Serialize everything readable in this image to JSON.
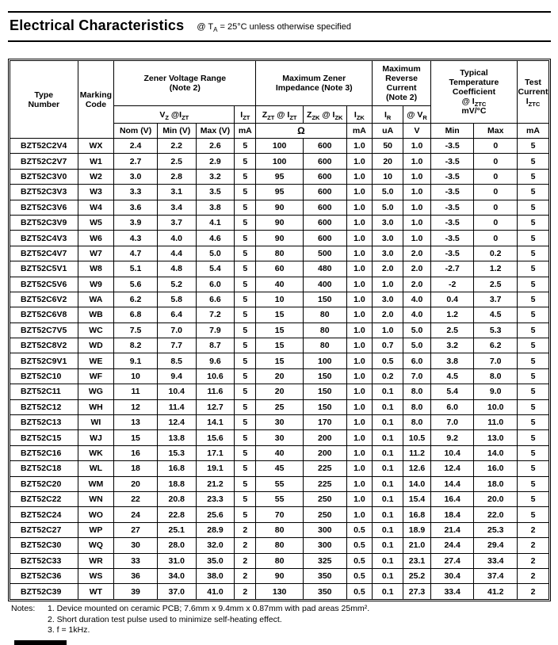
{
  "header": {
    "title": "Electrical Characteristics",
    "conditions": {
      "pre": "@ T",
      "sub": "A",
      "post": " = 25°C unless otherwise specified"
    }
  },
  "table": {
    "group_headers": {
      "type_number": "Type\nNumber",
      "marking_code": "Marking\nCode",
      "zener_voltage_range": "Zener Voltage Range\n(Note 2)",
      "max_zener_impedance": "Maximum Zener\nImpedance (Note 3)",
      "max_reverse_current": "Maximum\nReverse\nCurrent\n(Note 2)",
      "typ_temp_coeff": {
        "title": "Typical\nTemperature\nCoefficient",
        "at_pre": "@ I",
        "at_sub": "ZTC",
        "unit": "mV/°C"
      },
      "test_current": {
        "title": "Test\nCurrent",
        "i_pre": "I",
        "i_sub": "ZTC"
      }
    },
    "symbol_headers": {
      "vz": {
        "p1": "V",
        "s1": "Z",
        "p2": " @I",
        "s2": "ZT"
      },
      "izt": {
        "p1": "I",
        "s1": "ZT"
      },
      "zzt": {
        "p1": "Z",
        "s1": "ZT",
        "p2": " @ I",
        "s2": "ZT"
      },
      "zzk": {
        "p1": "Z",
        "s1": "ZK",
        "p2": " @ I",
        "s2": "ZK"
      },
      "izk": {
        "p1": "I",
        "s1": "ZK"
      },
      "ir": {
        "p1": "I",
        "s1": "R"
      },
      "vr": {
        "p1": "@ V",
        "s1": "R"
      }
    },
    "units": [
      "Nom (V)",
      "Min (V)",
      "Max (V)",
      "mA",
      "Ω",
      "mA",
      "uA",
      "V",
      "Min",
      "Max",
      "mA"
    ],
    "rows": [
      [
        "BZT52C2V4",
        "WX",
        "2.4",
        "2.2",
        "2.6",
        "5",
        "100",
        "600",
        "1.0",
        "50",
        "1.0",
        "-3.5",
        "0",
        "5"
      ],
      [
        "BZT52C2V7",
        "W1",
        "2.7",
        "2.5",
        "2.9",
        "5",
        "100",
        "600",
        "1.0",
        "20",
        "1.0",
        "-3.5",
        "0",
        "5"
      ],
      [
        "BZT52C3V0",
        "W2",
        "3.0",
        "2.8",
        "3.2",
        "5",
        "95",
        "600",
        "1.0",
        "10",
        "1.0",
        "-3.5",
        "0",
        "5"
      ],
      [
        "BZT52C3V3",
        "W3",
        "3.3",
        "3.1",
        "3.5",
        "5",
        "95",
        "600",
        "1.0",
        "5.0",
        "1.0",
        "-3.5",
        "0",
        "5"
      ],
      [
        "BZT52C3V6",
        "W4",
        "3.6",
        "3.4",
        "3.8",
        "5",
        "90",
        "600",
        "1.0",
        "5.0",
        "1.0",
        "-3.5",
        "0",
        "5"
      ],
      [
        "BZT52C3V9",
        "W5",
        "3.9",
        "3.7",
        "4.1",
        "5",
        "90",
        "600",
        "1.0",
        "3.0",
        "1.0",
        "-3.5",
        "0",
        "5"
      ],
      [
        "BZT52C4V3",
        "W6",
        "4.3",
        "4.0",
        "4.6",
        "5",
        "90",
        "600",
        "1.0",
        "3.0",
        "1.0",
        "-3.5",
        "0",
        "5"
      ],
      [
        "BZT52C4V7",
        "W7",
        "4.7",
        "4.4",
        "5.0",
        "5",
        "80",
        "500",
        "1.0",
        "3.0",
        "2.0",
        "-3.5",
        "0.2",
        "5"
      ],
      [
        "BZT52C5V1",
        "W8",
        "5.1",
        "4.8",
        "5.4",
        "5",
        "60",
        "480",
        "1.0",
        "2.0",
        "2.0",
        "-2.7",
        "1.2",
        "5"
      ],
      [
        "BZT52C5V6",
        "W9",
        "5.6",
        "5.2",
        "6.0",
        "5",
        "40",
        "400",
        "1.0",
        "1.0",
        "2.0",
        "-2",
        "2.5",
        "5"
      ],
      [
        "BZT52C6V2",
        "WA",
        "6.2",
        "5.8",
        "6.6",
        "5",
        "10",
        "150",
        "1.0",
        "3.0",
        "4.0",
        "0.4",
        "3.7",
        "5"
      ],
      [
        "BZT52C6V8",
        "WB",
        "6.8",
        "6.4",
        "7.2",
        "5",
        "15",
        "80",
        "1.0",
        "2.0",
        "4.0",
        "1.2",
        "4.5",
        "5"
      ],
      [
        "BZT52C7V5",
        "WC",
        "7.5",
        "7.0",
        "7.9",
        "5",
        "15",
        "80",
        "1.0",
        "1.0",
        "5.0",
        "2.5",
        "5.3",
        "5"
      ],
      [
        "BZT52C8V2",
        "WD",
        "8.2",
        "7.7",
        "8.7",
        "5",
        "15",
        "80",
        "1.0",
        "0.7",
        "5.0",
        "3.2",
        "6.2",
        "5"
      ],
      [
        "BZT52C9V1",
        "WE",
        "9.1",
        "8.5",
        "9.6",
        "5",
        "15",
        "100",
        "1.0",
        "0.5",
        "6.0",
        "3.8",
        "7.0",
        "5"
      ],
      [
        "BZT52C10",
        "WF",
        "10",
        "9.4",
        "10.6",
        "5",
        "20",
        "150",
        "1.0",
        "0.2",
        "7.0",
        "4.5",
        "8.0",
        "5"
      ],
      [
        "BZT52C11",
        "WG",
        "11",
        "10.4",
        "11.6",
        "5",
        "20",
        "150",
        "1.0",
        "0.1",
        "8.0",
        "5.4",
        "9.0",
        "5"
      ],
      [
        "BZT52C12",
        "WH",
        "12",
        "11.4",
        "12.7",
        "5",
        "25",
        "150",
        "1.0",
        "0.1",
        "8.0",
        "6.0",
        "10.0",
        "5"
      ],
      [
        "BZT52C13",
        "WI",
        "13",
        "12.4",
        "14.1",
        "5",
        "30",
        "170",
        "1.0",
        "0.1",
        "8.0",
        "7.0",
        "11.0",
        "5"
      ],
      [
        "BZT52C15",
        "WJ",
        "15",
        "13.8",
        "15.6",
        "5",
        "30",
        "200",
        "1.0",
        "0.1",
        "10.5",
        "9.2",
        "13.0",
        "5"
      ],
      [
        "BZT52C16",
        "WK",
        "16",
        "15.3",
        "17.1",
        "5",
        "40",
        "200",
        "1.0",
        "0.1",
        "11.2",
        "10.4",
        "14.0",
        "5"
      ],
      [
        "BZT52C18",
        "WL",
        "18",
        "16.8",
        "19.1",
        "5",
        "45",
        "225",
        "1.0",
        "0.1",
        "12.6",
        "12.4",
        "16.0",
        "5"
      ],
      [
        "BZT52C20",
        "WM",
        "20",
        "18.8",
        "21.2",
        "5",
        "55",
        "225",
        "1.0",
        "0.1",
        "14.0",
        "14.4",
        "18.0",
        "5"
      ],
      [
        "BZT52C22",
        "WN",
        "22",
        "20.8",
        "23.3",
        "5",
        "55",
        "250",
        "1.0",
        "0.1",
        "15.4",
        "16.4",
        "20.0",
        "5"
      ],
      [
        "BZT52C24",
        "WO",
        "24",
        "22.8",
        "25.6",
        "5",
        "70",
        "250",
        "1.0",
        "0.1",
        "16.8",
        "18.4",
        "22.0",
        "5"
      ],
      [
        "BZT52C27",
        "WP",
        "27",
        "25.1",
        "28.9",
        "2",
        "80",
        "300",
        "0.5",
        "0.1",
        "18.9",
        "21.4",
        "25.3",
        "2"
      ],
      [
        "BZT52C30",
        "WQ",
        "30",
        "28.0",
        "32.0",
        "2",
        "80",
        "300",
        "0.5",
        "0.1",
        "21.0",
        "24.4",
        "29.4",
        "2"
      ],
      [
        "BZT52C33",
        "WR",
        "33",
        "31.0",
        "35.0",
        "2",
        "80",
        "325",
        "0.5",
        "0.1",
        "23.1",
        "27.4",
        "33.4",
        "2"
      ],
      [
        "BZT52C36",
        "WS",
        "36",
        "34.0",
        "38.0",
        "2",
        "90",
        "350",
        "0.5",
        "0.1",
        "25.2",
        "30.4",
        "37.4",
        "2"
      ],
      [
        "BZT52C39",
        "WT",
        "39",
        "37.0",
        "41.0",
        "2",
        "130",
        "350",
        "0.5",
        "0.1",
        "27.3",
        "33.4",
        "41.2",
        "2"
      ]
    ]
  },
  "notes": {
    "label": "Notes:",
    "items": [
      "1. Device mounted on ceramic PCB; 7.6mm x 9.4mm x 0.87mm with pad areas 25mm².",
      "2. Short duration test pulse used to minimize self-heating effect.",
      "3. f = 1kHz."
    ]
  }
}
